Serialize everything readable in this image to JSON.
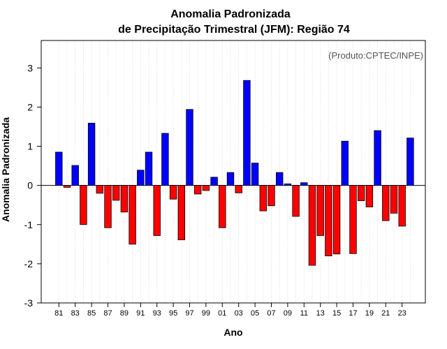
{
  "chart_data": {
    "type": "bar",
    "title": "Anomalia Padronizada",
    "subtitle": "de Precipitação Trimestral (JFM): Região 74",
    "xlabel": "Ano",
    "ylabel": "Anomalia Padronizada",
    "annotation": "(Produto:CPTEC/INPE)",
    "ylim": [
      -3,
      3.7
    ],
    "yticks": [
      -3,
      -2,
      -1,
      0,
      1,
      2,
      3
    ],
    "xtick_labels": [
      "81",
      "83",
      "85",
      "87",
      "89",
      "91",
      "93",
      "95",
      "97",
      "99",
      "01",
      "03",
      "05",
      "07",
      "09",
      "11",
      "13",
      "15",
      "17",
      "19",
      "21",
      "23"
    ],
    "grid": "vertical dotted",
    "colors": {
      "positive": "#0000ff",
      "negative": "#ff0000"
    },
    "categories": [
      "1981",
      "1982",
      "1983",
      "1984",
      "1985",
      "1986",
      "1987",
      "1988",
      "1989",
      "1990",
      "1991",
      "1992",
      "1993",
      "1994",
      "1995",
      "1996",
      "1997",
      "1998",
      "1999",
      "2000",
      "2001",
      "2002",
      "2003",
      "2004",
      "2005",
      "2006",
      "2007",
      "2008",
      "2009",
      "2010",
      "2011",
      "2012",
      "2013",
      "2014",
      "2015",
      "2016",
      "2017",
      "2018",
      "2019",
      "2020",
      "2021",
      "2022",
      "2023",
      "2024"
    ],
    "values": [
      0.85,
      -0.05,
      0.51,
      -1.0,
      1.59,
      -0.2,
      -1.08,
      -0.38,
      -0.68,
      -1.5,
      0.39,
      0.85,
      -1.28,
      1.33,
      -0.35,
      -1.39,
      1.94,
      -0.22,
      -0.13,
      0.21,
      -1.08,
      0.33,
      -0.19,
      2.68,
      0.57,
      -0.65,
      -0.52,
      0.33,
      0.04,
      -0.79,
      0.07,
      -2.04,
      -1.28,
      -1.8,
      -1.75,
      1.13,
      -1.74,
      -0.39,
      -0.55,
      1.4,
      -0.9,
      -0.71,
      -1.04,
      1.21
    ]
  }
}
